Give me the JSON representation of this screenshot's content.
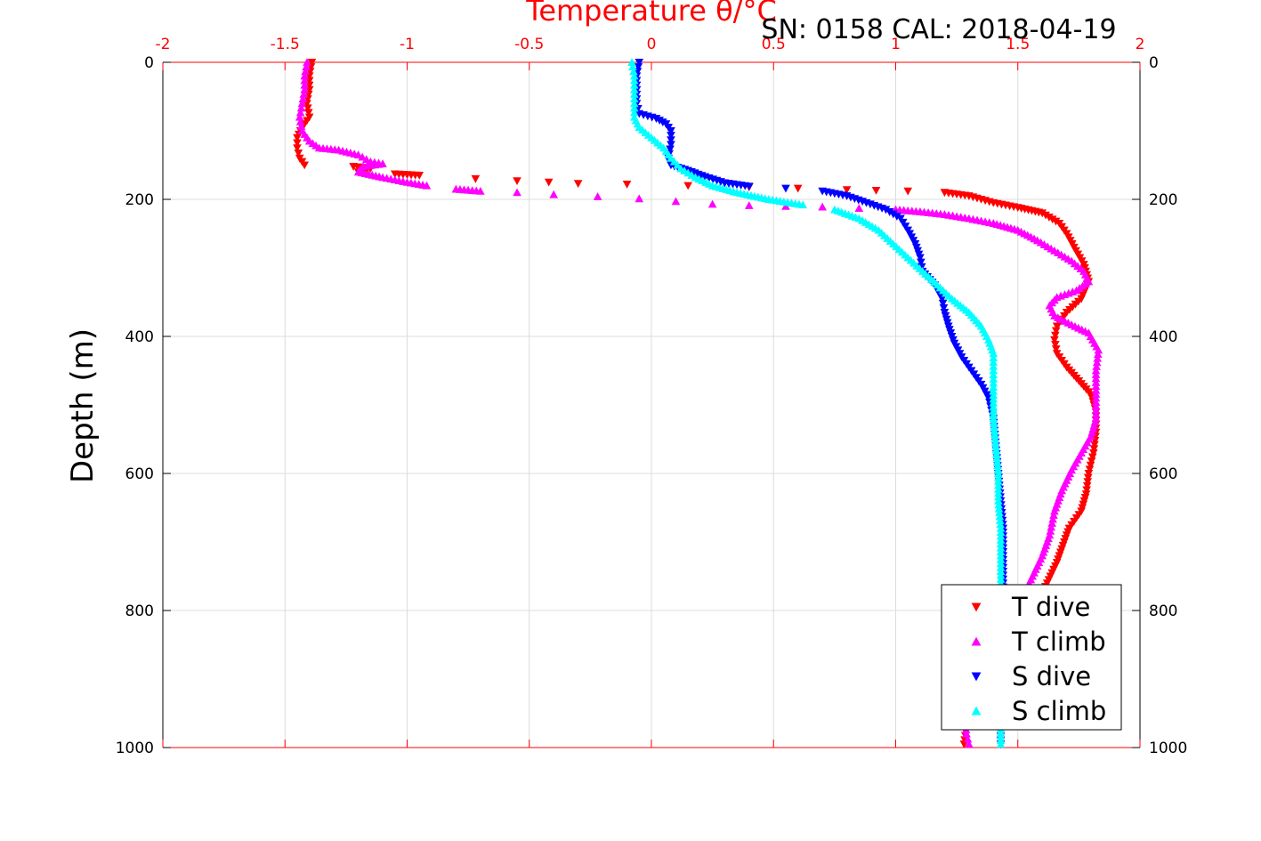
{
  "chart_data": {
    "type": "scatter",
    "title": "SN: 0158  CAL: 2018-04-19",
    "xlabel": "Temperature θ/°C",
    "ylabel": "Depth (m)",
    "xlim": [
      -2,
      2
    ],
    "ylim": [
      0,
      1000
    ],
    "y_reversed": true,
    "x_axis_position": "top",
    "x_ticks": [
      -2,
      -1.5,
      -1,
      -0.5,
      0,
      0.5,
      1,
      1.5,
      2
    ],
    "x_tick_labels": [
      "-2",
      "-1.5",
      "-1",
      "-0.5",
      "0",
      "0.5",
      "1",
      "1.5",
      "2"
    ],
    "y_ticks": [
      0,
      200,
      400,
      600,
      800,
      1000
    ],
    "y_tick_labels": [
      "0",
      "200",
      "400",
      "600",
      "800",
      "1000"
    ],
    "grid": true,
    "legend_position": "bottom-right",
    "colors": {
      "axis_top": "#ff0000",
      "axis_other": "#000000",
      "grid": "#dcdcdc"
    },
    "series": [
      {
        "name": "T dive",
        "color": "#ff0000",
        "marker": "triangle-down",
        "points": [
          [
            -1.39,
            0
          ],
          [
            -1.4,
            20
          ],
          [
            -1.4,
            40
          ],
          [
            -1.41,
            60
          ],
          [
            -1.4,
            80
          ],
          [
            -1.43,
            95
          ],
          [
            -1.45,
            110
          ],
          [
            -1.45,
            125
          ],
          [
            -1.44,
            140
          ],
          [
            -1.42,
            150
          ],
          [
            -1.22,
            152
          ],
          [
            -1.15,
            155
          ],
          [
            -1.2,
            160
          ],
          [
            -1.05,
            163
          ],
          [
            -0.95,
            165
          ],
          [
            -0.72,
            170
          ],
          [
            -0.55,
            173
          ],
          [
            -0.42,
            175
          ],
          [
            -0.3,
            177
          ],
          [
            -0.1,
            178
          ],
          [
            0.15,
            180
          ],
          [
            0.4,
            182
          ],
          [
            0.6,
            184
          ],
          [
            0.8,
            186
          ],
          [
            0.92,
            187
          ],
          [
            1.05,
            188
          ],
          [
            1.2,
            190
          ],
          [
            1.3,
            195
          ],
          [
            1.35,
            200
          ],
          [
            1.4,
            205
          ],
          [
            1.5,
            212
          ],
          [
            1.6,
            220
          ],
          [
            1.67,
            235
          ],
          [
            1.7,
            250
          ],
          [
            1.73,
            270
          ],
          [
            1.77,
            295
          ],
          [
            1.79,
            320
          ],
          [
            1.76,
            345
          ],
          [
            1.7,
            365
          ],
          [
            1.66,
            385
          ],
          [
            1.65,
            405
          ],
          [
            1.66,
            425
          ],
          [
            1.7,
            445
          ],
          [
            1.75,
            465
          ],
          [
            1.8,
            485
          ],
          [
            1.82,
            510
          ],
          [
            1.82,
            540
          ],
          [
            1.81,
            570
          ],
          [
            1.79,
            600
          ],
          [
            1.78,
            630
          ],
          [
            1.76,
            655
          ],
          [
            1.71,
            680
          ],
          [
            1.68,
            710
          ],
          [
            1.66,
            730
          ],
          [
            1.62,
            760
          ],
          [
            1.58,
            790
          ],
          [
            1.52,
            820
          ],
          [
            1.46,
            850
          ],
          [
            1.4,
            880
          ],
          [
            1.35,
            910
          ],
          [
            1.31,
            940
          ],
          [
            1.29,
            970
          ],
          [
            1.28,
            995
          ]
        ]
      },
      {
        "name": "T climb",
        "color": "#ff00ff",
        "marker": "triangle-up",
        "points": [
          [
            -1.41,
            0
          ],
          [
            -1.42,
            20
          ],
          [
            -1.42,
            40
          ],
          [
            -1.43,
            60
          ],
          [
            -1.44,
            80
          ],
          [
            -1.43,
            100
          ],
          [
            -1.4,
            115
          ],
          [
            -1.36,
            125
          ],
          [
            -1.28,
            128
          ],
          [
            -1.2,
            135
          ],
          [
            -1.15,
            145
          ],
          [
            -1.1,
            148
          ],
          [
            -1.18,
            152
          ],
          [
            -1.2,
            160
          ],
          [
            -1.1,
            168
          ],
          [
            -1.0,
            175
          ],
          [
            -0.92,
            180
          ],
          [
            -0.8,
            185
          ],
          [
            -0.7,
            188
          ],
          [
            -0.55,
            190
          ],
          [
            -0.4,
            193
          ],
          [
            -0.22,
            196
          ],
          [
            -0.05,
            199
          ],
          [
            0.1,
            203
          ],
          [
            0.25,
            207
          ],
          [
            0.4,
            209
          ],
          [
            0.55,
            210
          ],
          [
            0.7,
            211
          ],
          [
            0.85,
            213
          ],
          [
            1.0,
            215
          ],
          [
            1.1,
            218
          ],
          [
            1.2,
            222
          ],
          [
            1.3,
            228
          ],
          [
            1.4,
            235
          ],
          [
            1.5,
            245
          ],
          [
            1.58,
            260
          ],
          [
            1.65,
            275
          ],
          [
            1.72,
            290
          ],
          [
            1.77,
            305
          ],
          [
            1.79,
            320
          ],
          [
            1.74,
            333
          ],
          [
            1.66,
            343
          ],
          [
            1.63,
            355
          ],
          [
            1.65,
            370
          ],
          [
            1.72,
            383
          ],
          [
            1.79,
            395
          ],
          [
            1.83,
            420
          ],
          [
            1.82,
            450
          ],
          [
            1.82,
            490
          ],
          [
            1.82,
            520
          ],
          [
            1.8,
            545
          ],
          [
            1.76,
            570
          ],
          [
            1.72,
            595
          ],
          [
            1.68,
            625
          ],
          [
            1.65,
            655
          ],
          [
            1.63,
            690
          ],
          [
            1.6,
            720
          ],
          [
            1.56,
            750
          ],
          [
            1.52,
            780
          ],
          [
            1.47,
            815
          ],
          [
            1.42,
            850
          ],
          [
            1.37,
            880
          ],
          [
            1.32,
            915
          ],
          [
            1.28,
            950
          ],
          [
            1.29,
            980
          ],
          [
            1.3,
            995
          ]
        ]
      },
      {
        "name": "S dive",
        "color": "#0000ff",
        "marker": "triangle-down",
        "points": [
          [
            -0.05,
            0
          ],
          [
            -0.06,
            20
          ],
          [
            -0.06,
            40
          ],
          [
            -0.06,
            60
          ],
          [
            -0.05,
            75
          ],
          [
            0.02,
            82
          ],
          [
            0.06,
            90
          ],
          [
            0.08,
            100
          ],
          [
            0.08,
            120
          ],
          [
            0.07,
            140
          ],
          [
            0.08,
            150
          ],
          [
            0.15,
            158
          ],
          [
            0.22,
            167
          ],
          [
            0.3,
            176
          ],
          [
            0.4,
            181
          ],
          [
            0.55,
            184
          ],
          [
            0.7,
            188
          ],
          [
            0.8,
            195
          ],
          [
            0.88,
            205
          ],
          [
            0.96,
            215
          ],
          [
            1.02,
            228
          ],
          [
            1.05,
            245
          ],
          [
            1.08,
            265
          ],
          [
            1.1,
            285
          ],
          [
            1.11,
            305
          ],
          [
            1.16,
            325
          ],
          [
            1.19,
            345
          ],
          [
            1.2,
            365
          ],
          [
            1.22,
            390
          ],
          [
            1.24,
            410
          ],
          [
            1.27,
            430
          ],
          [
            1.31,
            450
          ],
          [
            1.35,
            470
          ],
          [
            1.38,
            490
          ],
          [
            1.4,
            520
          ],
          [
            1.41,
            560
          ],
          [
            1.42,
            600
          ],
          [
            1.43,
            640
          ],
          [
            1.44,
            680
          ],
          [
            1.44,
            720
          ],
          [
            1.44,
            760
          ],
          [
            1.44,
            800
          ],
          [
            1.43,
            840
          ],
          [
            1.43,
            880
          ],
          [
            1.43,
            920
          ],
          [
            1.43,
            960
          ],
          [
            1.43,
            995
          ]
        ]
      },
      {
        "name": "S climb",
        "color": "#00ffff",
        "marker": "triangle-up",
        "points": [
          [
            -0.08,
            0
          ],
          [
            -0.07,
            20
          ],
          [
            -0.07,
            40
          ],
          [
            -0.07,
            60
          ],
          [
            -0.07,
            80
          ],
          [
            -0.05,
            95
          ],
          [
            0.0,
            110
          ],
          [
            0.05,
            125
          ],
          [
            0.08,
            140
          ],
          [
            0.12,
            155
          ],
          [
            0.18,
            168
          ],
          [
            0.25,
            180
          ],
          [
            0.35,
            190
          ],
          [
            0.48,
            200
          ],
          [
            0.62,
            208
          ],
          [
            0.75,
            215
          ],
          [
            0.85,
            228
          ],
          [
            0.93,
            245
          ],
          [
            0.99,
            265
          ],
          [
            1.05,
            285
          ],
          [
            1.11,
            305
          ],
          [
            1.17,
            325
          ],
          [
            1.23,
            345
          ],
          [
            1.3,
            365
          ],
          [
            1.35,
            385
          ],
          [
            1.38,
            405
          ],
          [
            1.4,
            425
          ],
          [
            1.4,
            450
          ],
          [
            1.4,
            480
          ],
          [
            1.4,
            520
          ],
          [
            1.41,
            560
          ],
          [
            1.42,
            600
          ],
          [
            1.42,
            640
          ],
          [
            1.43,
            680
          ],
          [
            1.43,
            720
          ],
          [
            1.43,
            760
          ],
          [
            1.43,
            800
          ],
          [
            1.43,
            840
          ],
          [
            1.43,
            880
          ],
          [
            1.43,
            920
          ],
          [
            1.43,
            960
          ],
          [
            1.43,
            995
          ]
        ]
      }
    ]
  }
}
